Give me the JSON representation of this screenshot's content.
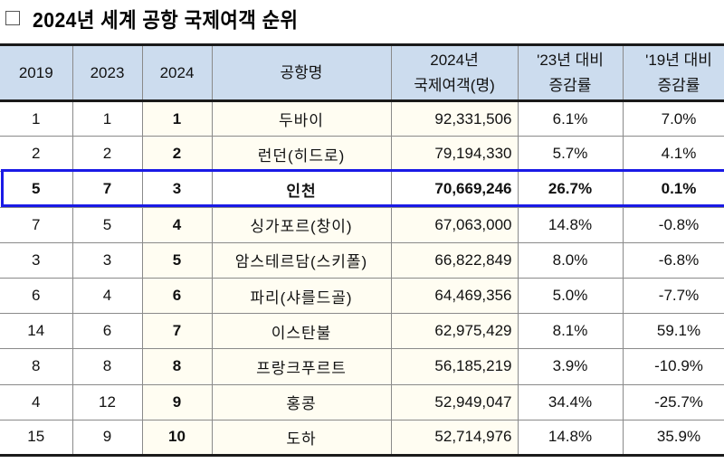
{
  "title": {
    "checkbox_icon": "empty-square",
    "text": "2024년 세계 공항 국제여객 순위"
  },
  "table": {
    "headers": {
      "rank_2019": "2019",
      "rank_2023": "2023",
      "rank_2024": "2024",
      "airport": "공항명",
      "passengers_line1": "2024년",
      "passengers_line2": "국제여객(명)",
      "vs23_line1": "'23년 대비",
      "vs23_line2": "증감률",
      "vs19_line1": "'19년 대비",
      "vs19_line2": "증감률"
    },
    "highlight_color": "#1a1ae6",
    "header_bg": "#ccdcee",
    "rows": [
      {
        "r2019": "1",
        "r2023": "1",
        "r2024": "1",
        "airport": "두바이",
        "passengers": "92,331,506",
        "vs23": "6.1%",
        "vs19": "7.0%"
      },
      {
        "r2019": "2",
        "r2023": "2",
        "r2024": "2",
        "airport": "런던(히드로)",
        "passengers": "79,194,330",
        "vs23": "5.7%",
        "vs19": "4.1%"
      },
      {
        "r2019": "5",
        "r2023": "7",
        "r2024": "3",
        "airport": "인천",
        "passengers": "70,669,246",
        "vs23": "26.7%",
        "vs19": "0.1%"
      },
      {
        "r2019": "7",
        "r2023": "5",
        "r2024": "4",
        "airport": "싱가포르(창이)",
        "passengers": "67,063,000",
        "vs23": "14.8%",
        "vs19": "-0.8%"
      },
      {
        "r2019": "3",
        "r2023": "3",
        "r2024": "5",
        "airport": "암스테르담(스키폴)",
        "passengers": "66,822,849",
        "vs23": "8.0%",
        "vs19": "-6.8%"
      },
      {
        "r2019": "6",
        "r2023": "4",
        "r2024": "6",
        "airport": "파리(샤를드골)",
        "passengers": "64,469,356",
        "vs23": "5.0%",
        "vs19": "-7.7%"
      },
      {
        "r2019": "14",
        "r2023": "6",
        "r2024": "7",
        "airport": "이스탄불",
        "passengers": "62,975,429",
        "vs23": "8.1%",
        "vs19": "59.1%"
      },
      {
        "r2019": "8",
        "r2023": "8",
        "r2024": "8",
        "airport": "프랑크푸르트",
        "passengers": "56,185,219",
        "vs23": "3.9%",
        "vs19": "-10.9%"
      },
      {
        "r2019": "4",
        "r2023": "12",
        "r2024": "9",
        "airport": "홍콩",
        "passengers": "52,949,047",
        "vs23": "34.4%",
        "vs19": "-25.7%"
      },
      {
        "r2019": "15",
        "r2023": "9",
        "r2024": "10",
        "airport": "도하",
        "passengers": "52,714,976",
        "vs23": "14.8%",
        "vs19": "35.9%"
      }
    ]
  }
}
